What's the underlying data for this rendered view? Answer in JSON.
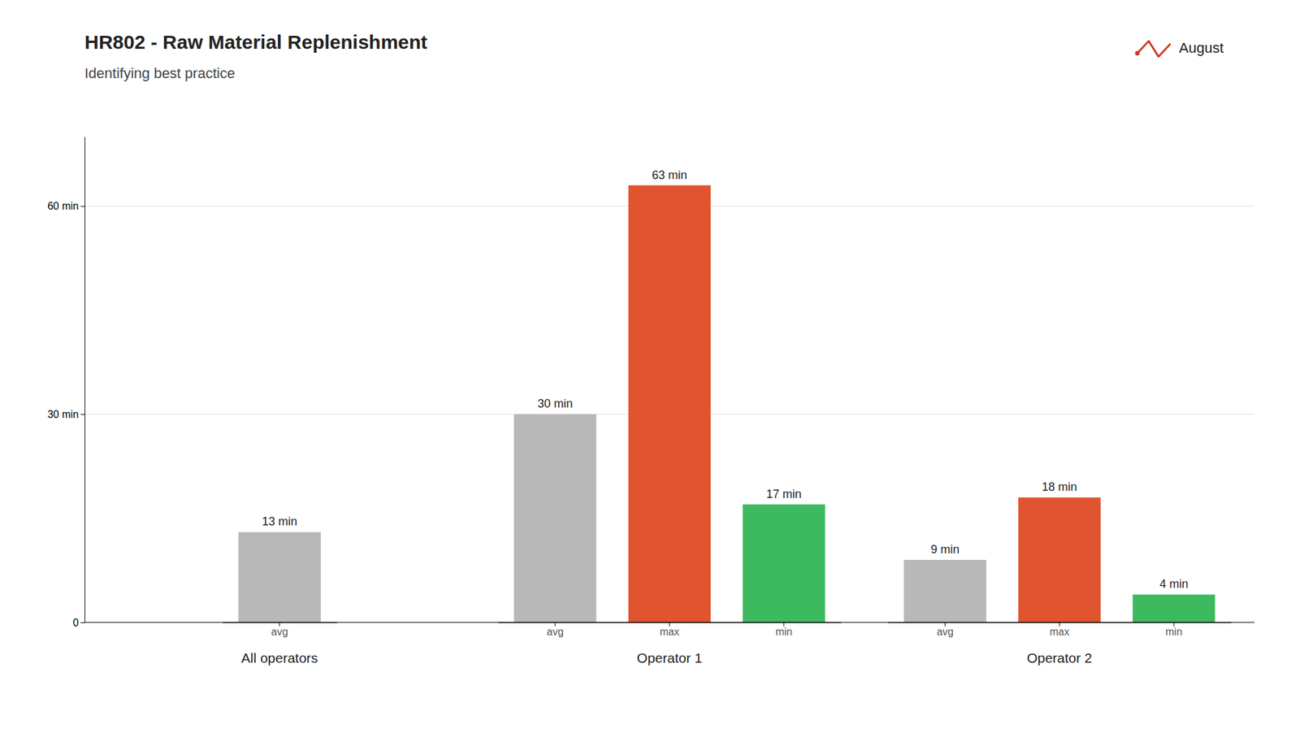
{
  "chart_data": {
    "type": "bar",
    "title": "HR802 - Raw Material Replenishment",
    "subtitle": "Identifying best practice",
    "ylim": [
      0,
      70
    ],
    "yticks": [
      0,
      {
        "value": 30,
        "label": "30 min"
      },
      {
        "value": 60,
        "label": "60 min"
      }
    ],
    "grid": true,
    "legend": "upper right",
    "data_labels": true,
    "series": [
      {
        "name": "August",
        "color": "#cc3b22",
        "groups": [
          {
            "name": "All operators",
            "categories": [
              "avg"
            ],
            "values": [
              13
            ],
            "colors": [
              "#b8b8b8"
            ],
            "value_labels": [
              "13 min"
            ]
          },
          {
            "name": "Operator 1",
            "categories": [
              "avg",
              "max",
              "min"
            ],
            "values": [
              30,
              63,
              17
            ],
            "colors": [
              "#b8b8b8",
              "#e05530",
              "#3dba5f"
            ],
            "value_labels": [
              "30 min",
              "63 min",
              "17 min"
            ]
          },
          {
            "name": "Operator 2",
            "categories": [
              "avg",
              "max",
              "min"
            ],
            "values": [
              9,
              18,
              4
            ],
            "colors": [
              "#b8b8b8",
              "#e05530",
              "#3dba5f"
            ],
            "value_labels": [
              "9 min",
              "18 min",
              "4 min"
            ]
          }
        ]
      }
    ]
  }
}
